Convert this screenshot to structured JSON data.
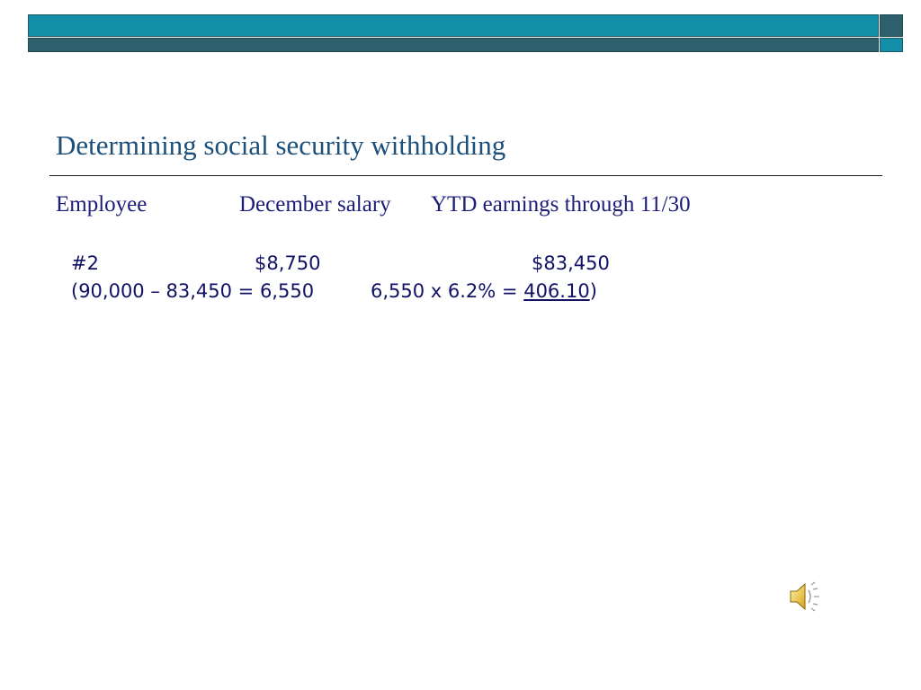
{
  "title": "Determining social security withholding",
  "columns": {
    "employee": "Employee",
    "december_salary": "December salary",
    "ytd_earnings": "YTD earnings through 11/30"
  },
  "row": {
    "employee": "#2",
    "december_salary": "$8,750",
    "ytd_earnings": "$83,450"
  },
  "calculation": {
    "step1": "(90,000 – 83,450 = 6,550",
    "step2_prefix": "6,550 x 6.2% = ",
    "result": "406.10",
    "closing": ")"
  },
  "colors": {
    "bar_light": "#138ea8",
    "bar_dark": "#2e5f6c",
    "title": "#1c4f7a",
    "text": "#1c1c7a"
  },
  "icons": {
    "speaker": "speaker-icon"
  }
}
